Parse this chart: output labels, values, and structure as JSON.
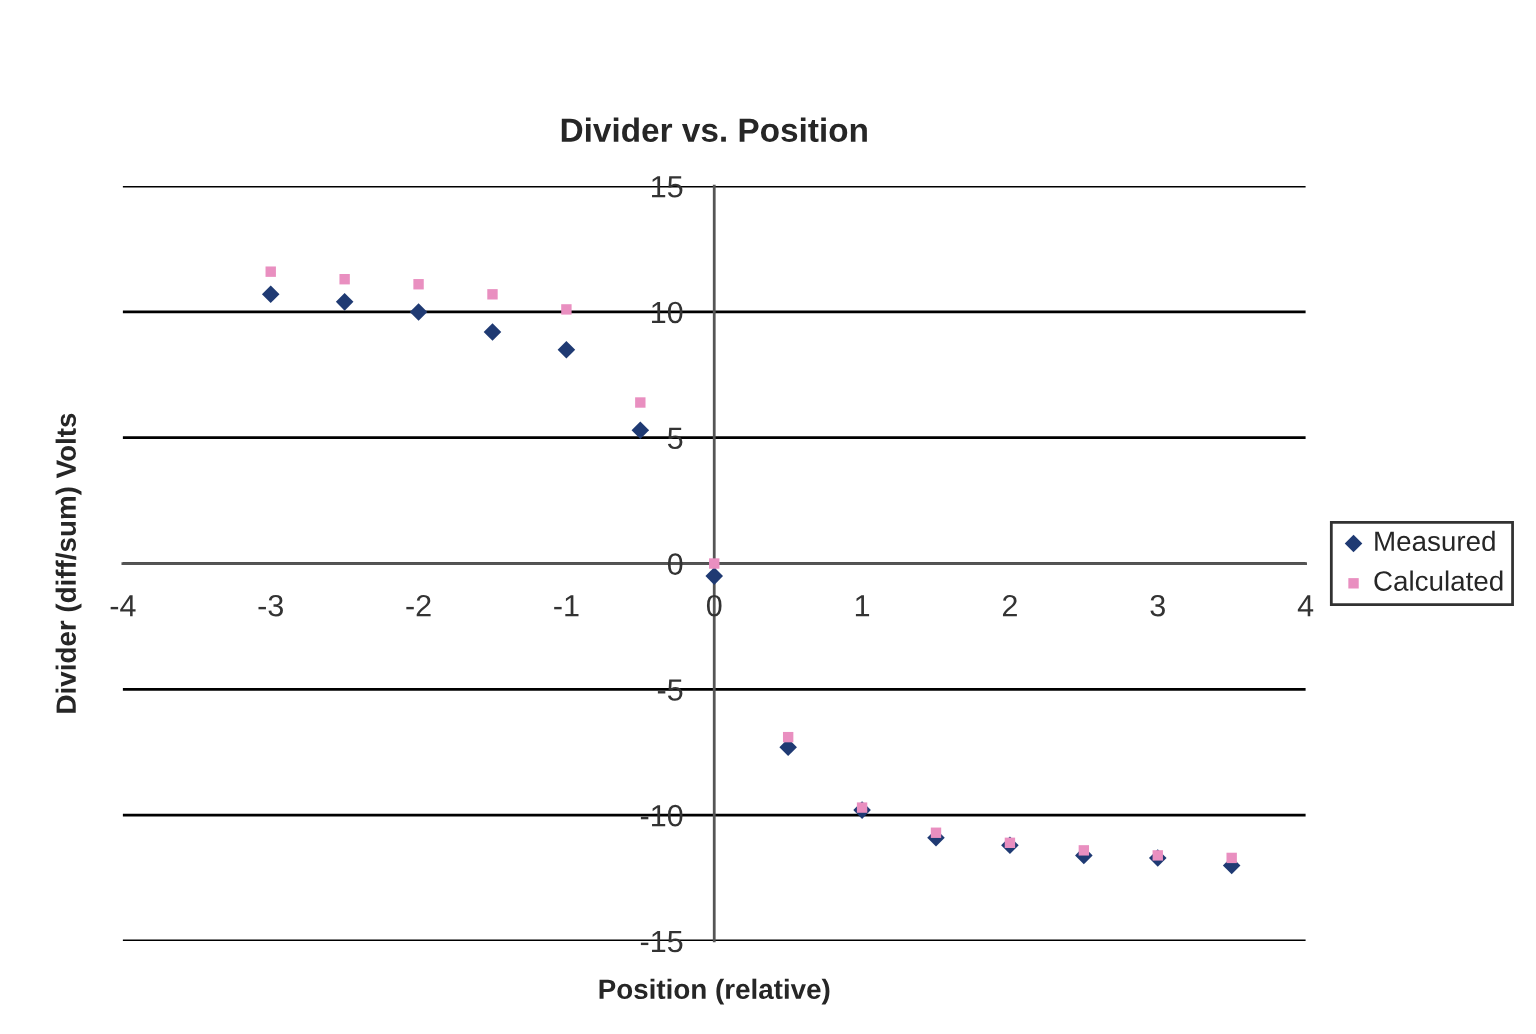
{
  "chart_data": {
    "type": "scatter",
    "title": "Divider vs. Position",
    "xlabel": "Position (relative)",
    "ylabel": "Divider (diff/sum) Volts",
    "x": [
      -3,
      -2.5,
      -2,
      -1.5,
      -1,
      -0.5,
      0,
      0.5,
      1,
      1.5,
      2,
      2.5,
      3,
      3.5
    ],
    "series": [
      {
        "name": "Measured",
        "color": "#1f3a73",
        "marker": "diamond",
        "values": [
          10.7,
          10.4,
          10.0,
          9.2,
          8.5,
          5.3,
          -0.5,
          -7.3,
          -9.8,
          -10.9,
          -11.2,
          -11.6,
          -11.7,
          -12.0
        ]
      },
      {
        "name": "Calculated",
        "color": "#e98fc0",
        "marker": "square",
        "values": [
          11.6,
          11.3,
          11.1,
          10.7,
          10.1,
          6.4,
          0,
          -6.9,
          -9.7,
          -10.7,
          -11.1,
          -11.4,
          -11.6,
          -11.7
        ]
      }
    ],
    "xlim": [
      -4,
      4
    ],
    "xticks": [
      -4,
      -3,
      -2,
      -1,
      0,
      1,
      2,
      3,
      4
    ],
    "ylim": [
      -15,
      15
    ],
    "yticks": [
      -15,
      -10,
      -5,
      0,
      5,
      10,
      15
    ],
    "grid": "y",
    "legend": "right"
  }
}
